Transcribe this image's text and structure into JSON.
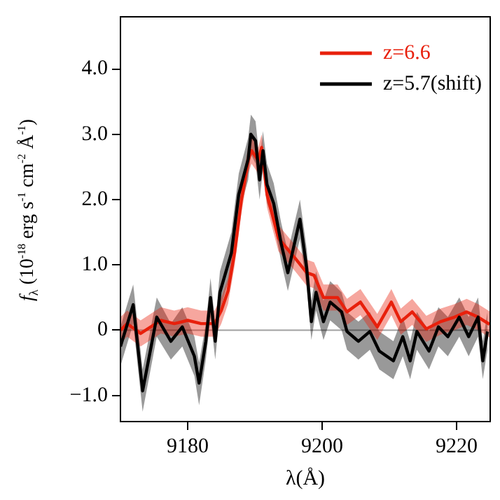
{
  "chart_data": {
    "type": "line",
    "xlabel": "λ(Å)",
    "ylabel": "f$_{λ}$ (10$^{-18}$ erg s$^{-1}$ cm$^{-2}$ Å$^{-1}$)",
    "xlim": [
      9170,
      9225
    ],
    "xticks": [
      9180,
      9200,
      9220
    ],
    "ylim": [
      -1.4,
      4.8
    ],
    "yticks": [
      {
        "value": -1,
        "label": "−1.0"
      },
      0,
      {
        "value": 1,
        "label": "1.0"
      },
      {
        "value": 2,
        "label": "2.0"
      },
      {
        "value": 3,
        "label": "3.0"
      },
      {
        "value": 4,
        "label": "4.0"
      }
    ],
    "grid": false,
    "legend": "top right",
    "marker": "none",
    "line_style": "solid",
    "ref_lines": [
      {
        "axis": "y",
        "value": 0,
        "color": "#a0a0a0"
      }
    ],
    "series": [
      {
        "name": "z=6.6",
        "color": "#e8200c",
        "x": [
          9170,
          9171,
          9173,
          9176,
          9178,
          9180,
          9182,
          9184,
          9185,
          9186,
          9187,
          9188,
          9189,
          9189.5,
          9190.5,
          9191,
          9191.8,
          9193.5,
          9196,
          9197.7,
          9198.8,
          9200.2,
          9202.3,
          9203.7,
          9205.7,
          9208.2,
          9210.3,
          9211.7,
          9213.4,
          9215.5,
          9217.6,
          9219.7,
          9221.5,
          9223.2,
          9224.9
        ],
        "values": [
          0,
          0.1,
          -0.05,
          0.15,
          0.1,
          0.15,
          0.1,
          0.1,
          0.3,
          0.6,
          1.2,
          2.0,
          2.6,
          2.75,
          2.6,
          2.8,
          2.08,
          1.41,
          1.1,
          0.88,
          0.84,
          0.5,
          0.5,
          0.28,
          0.43,
          0.05,
          0.43,
          0.13,
          0.28,
          0.02,
          0.13,
          0.2,
          0.28,
          0.2,
          0.09
        ],
        "lower": [
          -0.2,
          -0.1,
          -0.25,
          -0.05,
          -0.1,
          -0.05,
          -0.1,
          -0.1,
          0.1,
          0.4,
          1.0,
          1.8,
          2.4,
          2.55,
          2.4,
          2.6,
          1.88,
          1.21,
          0.9,
          0.68,
          0.64,
          0.3,
          0.3,
          0.08,
          0.23,
          -0.15,
          0.23,
          -0.07,
          0.08,
          -0.18,
          -0.07,
          0,
          0.08,
          0,
          -0.11
        ],
        "upper": [
          0.2,
          0.3,
          0.15,
          0.35,
          0.3,
          0.35,
          0.3,
          0.3,
          0.5,
          0.8,
          1.4,
          2.2,
          2.8,
          2.95,
          2.8,
          3.0,
          2.28,
          1.61,
          1.3,
          1.08,
          1.04,
          0.7,
          0.7,
          0.48,
          0.63,
          0.25,
          0.63,
          0.33,
          0.48,
          0.22,
          0.33,
          0.4,
          0.48,
          0.4,
          0.29
        ]
      },
      {
        "name": "z=5.7(shift)",
        "color": "#000000",
        "x": [
          9170,
          9171.9,
          9173.3,
          9175.4,
          9177.5,
          9179.2,
          9181,
          9181.7,
          9182.7,
          9183.4,
          9184.1,
          9184.8,
          9186.5,
          9187.6,
          9189,
          9189.4,
          9190.1,
          9190.7,
          9191.2,
          9191.8,
          9192.8,
          9193.9,
          9194.9,
          9196.7,
          9197.7,
          9198.4,
          9199.1,
          9200.2,
          9201.2,
          9202.9,
          9203.7,
          9205.4,
          9207.1,
          9208.5,
          9210.6,
          9212,
          9213.1,
          9214.1,
          9215.9,
          9217.3,
          9218.7,
          9220.4,
          9221.8,
          9223.2,
          9223.9,
          9224.6
        ],
        "values": [
          -0.25,
          0.39,
          -0.93,
          0.2,
          -0.17,
          0.05,
          -0.4,
          -0.81,
          -0.17,
          0.5,
          -0.17,
          0.58,
          1.18,
          2.08,
          2.62,
          3.0,
          2.9,
          2.3,
          2.75,
          2.23,
          1.94,
          1.33,
          0.88,
          1.7,
          0.95,
          0.13,
          0.58,
          0.13,
          0.43,
          0.28,
          -0.02,
          -0.17,
          -0.02,
          -0.32,
          -0.47,
          -0.1,
          -0.47,
          -0.02,
          -0.32,
          0.05,
          -0.1,
          0.2,
          -0.1,
          0.2,
          -0.47,
          -0.02
        ],
        "lower": [
          -0.55,
          0.1,
          -1.25,
          -0.1,
          -0.45,
          -0.25,
          -0.7,
          -1.15,
          -0.45,
          0.2,
          -0.45,
          0.3,
          0.9,
          1.8,
          2.3,
          2.7,
          2.55,
          2.0,
          2.45,
          1.95,
          1.65,
          1.05,
          0.6,
          1.4,
          0.65,
          -0.15,
          0.3,
          -0.15,
          0.15,
          0,
          -0.3,
          -0.45,
          -0.3,
          -0.6,
          -0.75,
          -0.4,
          -0.75,
          -0.3,
          -0.6,
          -0.25,
          -0.4,
          -0.1,
          -0.4,
          -0.1,
          -0.75,
          -0.3
        ],
        "upper": [
          0.05,
          0.7,
          -0.6,
          0.5,
          0.1,
          0.35,
          -0.1,
          -0.5,
          0.1,
          0.8,
          0.1,
          0.9,
          1.5,
          2.4,
          2.95,
          3.3,
          3.2,
          2.6,
          3.05,
          2.55,
          2.25,
          1.65,
          1.2,
          2.0,
          1.25,
          0.45,
          0.9,
          0.45,
          0.75,
          0.58,
          0.28,
          0.13,
          0.28,
          -0.02,
          -0.17,
          0.2,
          -0.17,
          0.28,
          -0.02,
          0.35,
          0.2,
          0.5,
          0.2,
          0.5,
          -0.17,
          0.28
        ]
      }
    ]
  }
}
